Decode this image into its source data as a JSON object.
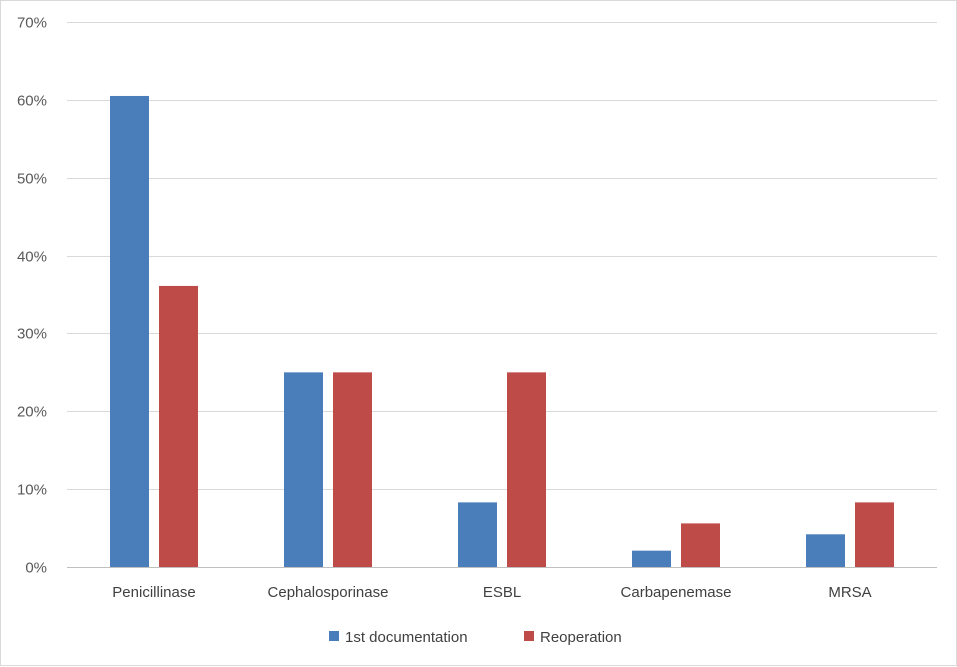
{
  "chart_data": {
    "type": "bar",
    "categories": [
      "Penicillinase",
      "Cephalosporinase",
      "ESBL",
      "Carbapenemase",
      "MRSA"
    ],
    "series": [
      {
        "name": "1st documentation",
        "values": [
          60.5,
          25.0,
          8.3,
          2.1,
          4.2
        ],
        "color": "#4a7ebb"
      },
      {
        "name": "Reoperation",
        "values": [
          36.1,
          25.0,
          25.0,
          5.6,
          8.3
        ],
        "color": "#be4b48"
      }
    ],
    "ylim": [
      0,
      70
    ],
    "yticks": [
      0,
      10,
      20,
      30,
      40,
      50,
      60,
      70
    ],
    "ytick_labels": [
      "0%",
      "10%",
      "20%",
      "30%",
      "40%",
      "50%",
      "60%",
      "70%"
    ],
    "grid": true,
    "legend_position": "bottom"
  }
}
